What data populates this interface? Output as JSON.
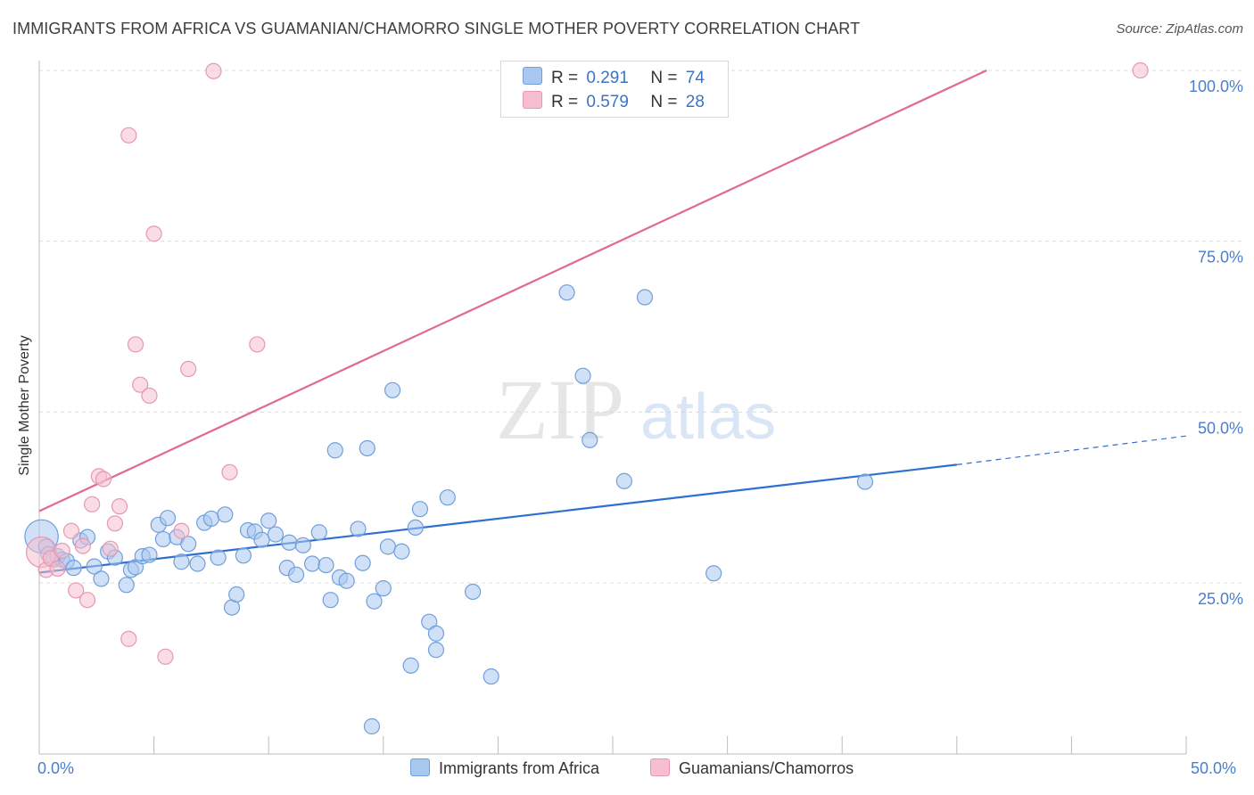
{
  "header": {
    "title": "IMMIGRANTS FROM AFRICA VS GUAMANIAN/CHAMORRO SINGLE MOTHER POVERTY CORRELATION CHART",
    "source": "Source: ZipAtlas.com"
  },
  "watermark": {
    "zip": "ZIP",
    "atlas": "atlas"
  },
  "legend": {
    "series1": {
      "r_label": "R =",
      "r_value": "0.291",
      "n_label": "N =",
      "n_value": "74"
    },
    "series2": {
      "r_label": "R =",
      "r_value": "0.579",
      "n_label": "N =",
      "n_value": "28"
    }
  },
  "colors": {
    "blue_fill": "#a9c8f0",
    "blue_stroke": "#6f9fdc",
    "blue_line": "#2f6fd0",
    "pink_fill": "#f6bfd0",
    "pink_stroke": "#e897b2",
    "pink_line": "#e06a92",
    "tick_text": "#4a7fc9"
  },
  "chart_data": {
    "type": "scatter",
    "title": "IMMIGRANTS FROM AFRICA VS GUAMANIAN/CHAMORRO SINGLE MOTHER POVERTY CORRELATION CHART",
    "xlabel": "",
    "ylabel": "Single Mother Poverty",
    "xlim": [
      0,
      50
    ],
    "ylim": [
      0,
      102
    ],
    "x_tick_labels": {
      "left": "0.0%",
      "right": "50.0%"
    },
    "y_ticks": [
      {
        "value": 25,
        "label": "25.0%"
      },
      {
        "value": 50,
        "label": "50.0%"
      },
      {
        "value": 75,
        "label": "75.0%"
      },
      {
        "value": 100,
        "label": "100.0%"
      }
    ],
    "grid": true,
    "series": [
      {
        "name": "Immigrants from Africa",
        "color": "blue",
        "R": 0.291,
        "N": 74,
        "trend": {
          "x0": 0,
          "y0": 26.5,
          "x1": 40,
          "y1": 42.3,
          "dash_to_x": 50,
          "dash_to_y": 46.5
        },
        "points": [
          [
            0.1,
            31.8,
            2.2
          ],
          [
            0.3,
            30.3,
            1
          ],
          [
            0.4,
            29.2,
            1
          ],
          [
            0.6,
            28.4,
            1
          ],
          [
            0.8,
            28.9,
            1
          ],
          [
            1.0,
            28.4,
            1
          ],
          [
            1.2,
            28.2,
            1
          ],
          [
            1.5,
            27.2,
            1
          ],
          [
            1.8,
            31.2,
            1
          ],
          [
            2.1,
            31.7,
            1
          ],
          [
            2.4,
            27.4,
            1
          ],
          [
            2.7,
            25.6,
            1
          ],
          [
            3.0,
            29.6,
            1
          ],
          [
            3.3,
            28.7,
            1
          ],
          [
            3.8,
            24.7,
            1
          ],
          [
            4.0,
            26.9,
            1
          ],
          [
            4.2,
            27.3,
            1
          ],
          [
            4.5,
            28.9,
            1
          ],
          [
            4.8,
            29.1,
            1
          ],
          [
            5.2,
            33.5,
            1
          ],
          [
            5.4,
            31.4,
            1
          ],
          [
            5.6,
            34.5,
            1
          ],
          [
            6.0,
            31.7,
            1
          ],
          [
            6.2,
            28.1,
            1
          ],
          [
            6.5,
            30.7,
            1
          ],
          [
            6.9,
            27.8,
            1
          ],
          [
            7.2,
            33.8,
            1
          ],
          [
            7.5,
            34.4,
            1
          ],
          [
            7.8,
            28.7,
            1
          ],
          [
            8.1,
            35.0,
            1
          ],
          [
            8.4,
            21.4,
            1
          ],
          [
            8.6,
            23.3,
            1
          ],
          [
            8.9,
            29.0,
            1
          ],
          [
            9.1,
            32.7,
            1
          ],
          [
            9.4,
            32.5,
            1
          ],
          [
            9.7,
            31.3,
            1
          ],
          [
            10.0,
            34.1,
            1
          ],
          [
            10.3,
            32.1,
            1
          ],
          [
            10.8,
            27.2,
            1
          ],
          [
            10.9,
            30.9,
            1
          ],
          [
            11.2,
            26.2,
            1
          ],
          [
            11.5,
            30.5,
            1
          ],
          [
            11.9,
            27.8,
            1
          ],
          [
            12.2,
            32.4,
            1
          ],
          [
            12.5,
            27.6,
            1
          ],
          [
            12.7,
            22.5,
            1
          ],
          [
            12.9,
            44.4,
            1
          ],
          [
            13.1,
            25.8,
            1
          ],
          [
            13.4,
            25.3,
            1
          ],
          [
            13.9,
            32.9,
            1
          ],
          [
            14.1,
            27.9,
            1
          ],
          [
            14.3,
            44.7,
            1
          ],
          [
            14.5,
            4.0,
            1
          ],
          [
            14.6,
            22.3,
            1
          ],
          [
            15.0,
            24.2,
            1
          ],
          [
            15.2,
            30.3,
            1
          ],
          [
            15.4,
            53.2,
            1
          ],
          [
            15.8,
            29.6,
            1
          ],
          [
            16.2,
            12.9,
            1
          ],
          [
            16.4,
            33.1,
            1
          ],
          [
            16.6,
            35.8,
            1
          ],
          [
            17.0,
            19.3,
            1
          ],
          [
            17.3,
            17.6,
            1
          ],
          [
            17.3,
            15.2,
            1
          ],
          [
            17.8,
            37.5,
            1
          ],
          [
            18.9,
            23.7,
            1
          ],
          [
            19.7,
            11.3,
            1
          ],
          [
            23.0,
            67.5,
            1
          ],
          [
            23.7,
            55.3,
            1
          ],
          [
            24.0,
            45.9,
            1
          ],
          [
            25.5,
            39.9,
            1
          ],
          [
            26.4,
            66.8,
            1
          ],
          [
            29.4,
            26.4,
            1
          ],
          [
            36.0,
            39.8,
            1
          ]
        ]
      },
      {
        "name": "Guamanians/Chamorros",
        "color": "pink",
        "R": 0.579,
        "N": 28,
        "trend": {
          "x0": 0,
          "y0": 35.5,
          "x1": 41.3,
          "y1": 100
        },
        "points": [
          [
            0.1,
            29.5,
            2.0
          ],
          [
            0.3,
            26.9,
            1
          ],
          [
            0.5,
            28.6,
            1
          ],
          [
            0.8,
            27.1,
            1
          ],
          [
            1.0,
            29.7,
            1
          ],
          [
            1.4,
            32.6,
            1
          ],
          [
            1.6,
            23.9,
            1
          ],
          [
            1.9,
            30.4,
            1
          ],
          [
            2.1,
            22.5,
            1
          ],
          [
            2.3,
            36.5,
            1
          ],
          [
            2.6,
            40.6,
            1
          ],
          [
            2.8,
            40.2,
            1
          ],
          [
            3.1,
            30.0,
            1
          ],
          [
            3.3,
            33.7,
            1
          ],
          [
            3.5,
            36.2,
            1
          ],
          [
            3.9,
            16.8,
            1
          ],
          [
            3.9,
            90.5,
            1
          ],
          [
            4.2,
            59.9,
            1
          ],
          [
            4.4,
            54.0,
            1
          ],
          [
            4.8,
            52.4,
            1
          ],
          [
            5.0,
            76.1,
            1
          ],
          [
            5.5,
            14.2,
            1
          ],
          [
            6.2,
            32.6,
            1
          ],
          [
            6.5,
            56.3,
            1
          ],
          [
            7.6,
            99.9,
            1
          ],
          [
            8.3,
            41.2,
            1
          ],
          [
            9.5,
            59.9,
            1
          ],
          [
            48.0,
            100.0,
            1
          ]
        ]
      }
    ],
    "series_labels": [
      "Immigrants from Africa",
      "Guamanians/Chamorros"
    ]
  }
}
